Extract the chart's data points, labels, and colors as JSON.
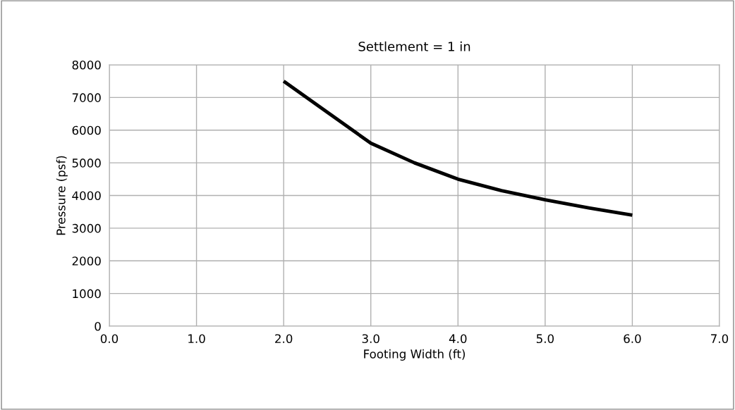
{
  "chart_data": {
    "type": "line",
    "title": "Settlement = 1 in",
    "xlabel": "Footing Width (ft)",
    "ylabel": "Pressure (psf)",
    "x": [
      2.0,
      2.5,
      3.0,
      3.5,
      4.0,
      4.5,
      5.0,
      5.5,
      6.0
    ],
    "series": [
      {
        "color": "#000000",
        "values": [
          7500,
          6550,
          5600,
          5000,
          4500,
          4150,
          3870,
          3620,
          3400
        ]
      }
    ],
    "xlim": [
      0,
      7
    ],
    "xticks": [
      {
        "value": 0,
        "label": "0.0"
      },
      {
        "value": 1,
        "label": "1.0"
      },
      {
        "value": 2,
        "label": "2.0"
      },
      {
        "value": 3,
        "label": "3.0"
      },
      {
        "value": 4,
        "label": "4.0"
      },
      {
        "value": 5,
        "label": "5.0"
      },
      {
        "value": 6,
        "label": "6.0"
      },
      {
        "value": 7,
        "label": "7.0"
      }
    ],
    "ylim": [
      0,
      8000
    ],
    "yticks": [
      0,
      1000,
      2000,
      3000,
      4000,
      5000,
      6000,
      7000,
      8000
    ],
    "grid": true,
    "legend": false,
    "marker": "none",
    "line_style": "solid"
  }
}
